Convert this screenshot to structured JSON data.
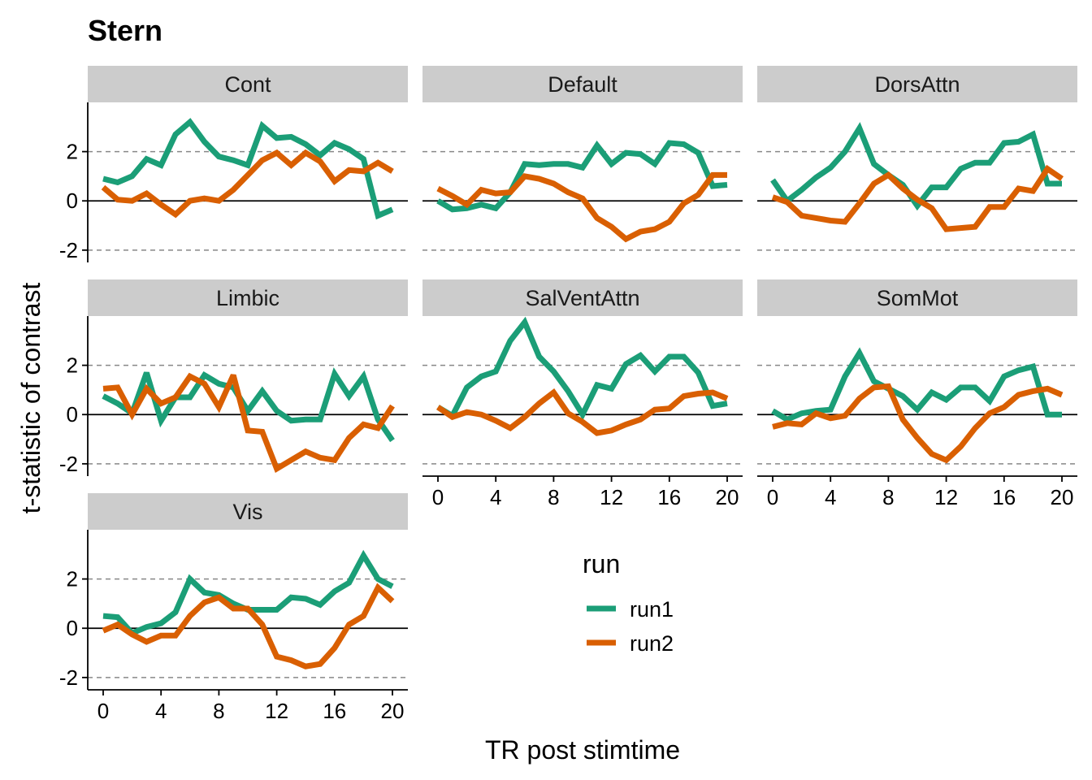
{
  "chart_data": {
    "type": "line",
    "title": "Stern",
    "xlabel": "TR post stimtime",
    "ylabel": "t-statistic of contrast",
    "x": [
      0,
      1,
      2,
      3,
      4,
      5,
      6,
      7,
      8,
      9,
      10,
      11,
      12,
      13,
      14,
      15,
      16,
      17,
      18,
      19,
      20
    ],
    "x_ticks": [
      0,
      4,
      8,
      12,
      16,
      20
    ],
    "x_tick_labels": [
      "0",
      "4",
      "8",
      "12",
      "16",
      "20"
    ],
    "y_ticks": [
      -2,
      0,
      2
    ],
    "y_tick_labels": [
      "-2",
      "0",
      "2"
    ],
    "ylim": [
      -2.5,
      4
    ],
    "reference_lines": {
      "solid": [
        0
      ],
      "dashed": [
        -2,
        2
      ]
    },
    "legend": {
      "title": "run",
      "position": "bottom-center"
    },
    "series_names": [
      "run1",
      "run2"
    ],
    "colors": {
      "run1": "#1b9e77",
      "run2": "#d95f02",
      "strip": "#cccccc",
      "dashed": "#888888"
    },
    "panels": [
      {
        "name": "Cont",
        "run1": [
          0.9,
          0.75,
          1.0,
          1.7,
          1.45,
          2.7,
          3.2,
          2.4,
          1.8,
          1.65,
          1.45,
          3.05,
          2.55,
          2.6,
          2.3,
          1.85,
          2.35,
          2.1,
          1.7,
          -0.6,
          -0.35
        ],
        "run2": [
          0.55,
          0.05,
          0.0,
          0.3,
          -0.15,
          -0.55,
          0.0,
          0.1,
          0.0,
          0.45,
          1.05,
          1.65,
          1.95,
          1.45,
          1.95,
          1.6,
          0.8,
          1.25,
          1.2,
          1.55,
          1.2
        ]
      },
      {
        "name": "Default",
        "run1": [
          0.0,
          -0.35,
          -0.3,
          -0.15,
          -0.3,
          0.35,
          1.5,
          1.45,
          1.5,
          1.5,
          1.35,
          2.25,
          1.5,
          1.95,
          1.9,
          1.5,
          2.35,
          2.3,
          1.95,
          0.6,
          0.65
        ],
        "run2": [
          0.5,
          0.2,
          -0.15,
          0.45,
          0.3,
          0.35,
          1.0,
          0.9,
          0.7,
          0.35,
          0.1,
          -0.7,
          -1.05,
          -1.55,
          -1.25,
          -1.15,
          -0.85,
          -0.1,
          0.25,
          1.05,
          1.05
        ]
      },
      {
        "name": "DorsAttn",
        "run1": [
          0.85,
          0.0,
          0.45,
          0.95,
          1.35,
          2.0,
          2.95,
          1.5,
          1.05,
          0.65,
          -0.2,
          0.55,
          0.55,
          1.3,
          1.55,
          1.55,
          2.35,
          2.4,
          2.7,
          0.7,
          0.7
        ],
        "run2": [
          0.15,
          -0.05,
          -0.6,
          -0.7,
          -0.8,
          -0.85,
          -0.1,
          0.7,
          1.05,
          0.5,
          0.05,
          -0.3,
          -1.15,
          -1.1,
          -1.05,
          -0.25,
          -0.25,
          0.5,
          0.4,
          1.3,
          0.9
        ]
      },
      {
        "name": "Limbic",
        "run1": [
          0.75,
          0.45,
          0.05,
          1.7,
          -0.25,
          0.7,
          0.7,
          1.6,
          1.25,
          1.1,
          0.15,
          0.95,
          0.15,
          -0.25,
          -0.2,
          -0.2,
          1.65,
          0.75,
          1.55,
          -0.2,
          -1.05
        ],
        "run2": [
          1.05,
          1.1,
          0.0,
          1.05,
          0.45,
          0.7,
          1.55,
          1.25,
          0.3,
          1.6,
          -0.65,
          -0.7,
          -2.2,
          -1.85,
          -1.5,
          -1.75,
          -1.85,
          -0.95,
          -0.4,
          -0.55,
          0.35
        ]
      },
      {
        "name": "SalVentAttn",
        "run1": [
          0.3,
          -0.05,
          1.1,
          1.55,
          1.75,
          3.0,
          3.75,
          2.35,
          1.75,
          0.95,
          0.0,
          1.2,
          1.05,
          2.05,
          2.4,
          1.75,
          2.35,
          2.35,
          1.7,
          0.35,
          0.45
        ],
        "run2": [
          0.3,
          -0.1,
          0.1,
          0.0,
          -0.25,
          -0.55,
          -0.1,
          0.45,
          0.9,
          0.05,
          -0.3,
          -0.75,
          -0.65,
          -0.4,
          -0.2,
          0.2,
          0.25,
          0.75,
          0.85,
          0.9,
          0.65
        ]
      },
      {
        "name": "SomMot",
        "run1": [
          0.15,
          -0.2,
          0.05,
          0.15,
          0.2,
          1.55,
          2.5,
          1.35,
          1.05,
          0.75,
          0.2,
          0.9,
          0.6,
          1.1,
          1.1,
          0.55,
          1.55,
          1.8,
          1.95,
          0.0,
          0.0
        ],
        "run2": [
          -0.5,
          -0.35,
          -0.4,
          0.05,
          -0.15,
          -0.05,
          0.65,
          1.1,
          1.15,
          -0.2,
          -0.95,
          -1.6,
          -1.85,
          -1.3,
          -0.55,
          0.05,
          0.3,
          0.8,
          0.95,
          1.05,
          0.8
        ]
      },
      {
        "name": "Vis",
        "run1": [
          0.5,
          0.45,
          -0.2,
          0.05,
          0.2,
          0.65,
          2.0,
          1.45,
          1.35,
          1.0,
          0.75,
          0.75,
          0.75,
          1.25,
          1.2,
          0.95,
          1.5,
          1.85,
          2.95,
          2.0,
          1.7
        ],
        "run2": [
          -0.1,
          0.15,
          -0.25,
          -0.55,
          -0.3,
          -0.3,
          0.5,
          1.05,
          1.25,
          0.8,
          0.8,
          0.15,
          -1.15,
          -1.3,
          -1.55,
          -1.45,
          -0.8,
          0.15,
          0.5,
          1.65,
          1.1
        ]
      }
    ]
  }
}
